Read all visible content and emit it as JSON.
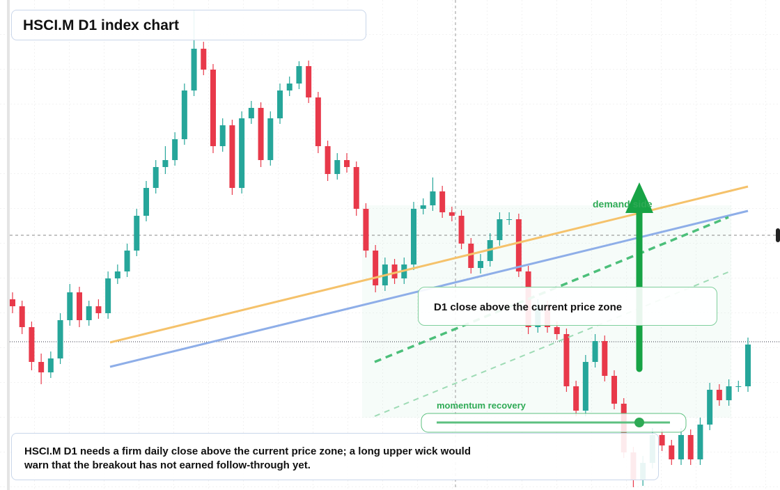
{
  "chart_data": {
    "type": "candlestick",
    "title": "HSCI.M D1 index chart",
    "annotations": {
      "demand": "demand side",
      "zone": "D1 close above the current price zone",
      "momentum": "momentum recovery",
      "note": "HSCI.M D1 needs a firm daily close above the current price zone; a long upper wick would warn that the breakout has not earned follow-through yet."
    },
    "up_color": "#26a69a",
    "down_color": "#e8394a",
    "ylim": [
      0,
      704
    ],
    "ohlc": [
      [
        274,
        284,
        254,
        264
      ],
      [
        264,
        272,
        224,
        234
      ],
      [
        234,
        242,
        172,
        184
      ],
      [
        184,
        196,
        152,
        169
      ],
      [
        169,
        199,
        161,
        189
      ],
      [
        189,
        254,
        181,
        244
      ],
      [
        244,
        296,
        236,
        284
      ],
      [
        284,
        292,
        234,
        244
      ],
      [
        244,
        272,
        236,
        264
      ],
      [
        264,
        274,
        246,
        254
      ],
      [
        254,
        314,
        246,
        304
      ],
      [
        304,
        324,
        296,
        314
      ],
      [
        314,
        354,
        306,
        344
      ],
      [
        344,
        404,
        336,
        394
      ],
      [
        394,
        444,
        386,
        434
      ],
      [
        434,
        474,
        426,
        464
      ],
      [
        464,
        494,
        454,
        474
      ],
      [
        474,
        514,
        466,
        504
      ],
      [
        504,
        584,
        496,
        574
      ],
      [
        574,
        690,
        566,
        634
      ],
      [
        634,
        644,
        596,
        604
      ],
      [
        604,
        612,
        484,
        494
      ],
      [
        494,
        534,
        486,
        524
      ],
      [
        524,
        532,
        424,
        434
      ],
      [
        434,
        544,
        426,
        534
      ],
      [
        534,
        559,
        526,
        549
      ],
      [
        549,
        557,
        464,
        474
      ],
      [
        474,
        544,
        466,
        534
      ],
      [
        534,
        584,
        526,
        574
      ],
      [
        574,
        594,
        566,
        584
      ],
      [
        584,
        616,
        576,
        609
      ],
      [
        609,
        617,
        556,
        564
      ],
      [
        564,
        572,
        484,
        494
      ],
      [
        494,
        502,
        444,
        454
      ],
      [
        454,
        484,
        446,
        474
      ],
      [
        474,
        484,
        456,
        464
      ],
      [
        464,
        472,
        394,
        404
      ],
      [
        404,
        412,
        334,
        344
      ],
      [
        344,
        352,
        284,
        294
      ],
      [
        294,
        334,
        286,
        324
      ],
      [
        324,
        332,
        296,
        304
      ],
      [
        304,
        334,
        296,
        324
      ],
      [
        324,
        414,
        316,
        404
      ],
      [
        404,
        419,
        396,
        409
      ],
      [
        409,
        449,
        401,
        429
      ],
      [
        429,
        437,
        391,
        399
      ],
      [
        399,
        407,
        386,
        394
      ],
      [
        394,
        402,
        346,
        354
      ],
      [
        354,
        362,
        311,
        319
      ],
      [
        319,
        339,
        311,
        329
      ],
      [
        329,
        369,
        321,
        359
      ],
      [
        359,
        399,
        351,
        389
      ],
      [
        389,
        399,
        381,
        389
      ],
      [
        389,
        397,
        306,
        314
      ],
      [
        314,
        322,
        224,
        234
      ],
      [
        234,
        274,
        226,
        264
      ],
      [
        264,
        272,
        226,
        234
      ],
      [
        234,
        242,
        216,
        224
      ],
      [
        224,
        232,
        141,
        149
      ],
      [
        149,
        157,
        106,
        114
      ],
      [
        114,
        194,
        106,
        184
      ],
      [
        184,
        224,
        176,
        214
      ],
      [
        214,
        222,
        156,
        164
      ],
      [
        164,
        172,
        116,
        124
      ],
      [
        124,
        132,
        46,
        54
      ],
      [
        54,
        62,
        4,
        14
      ],
      [
        14,
        49,
        6,
        39
      ],
      [
        39,
        89,
        31,
        79
      ],
      [
        79,
        87,
        56,
        64
      ],
      [
        64,
        72,
        36,
        44
      ],
      [
        44,
        89,
        36,
        79
      ],
      [
        79,
        87,
        36,
        44
      ],
      [
        44,
        104,
        36,
        94
      ],
      [
        94,
        154,
        86,
        144
      ],
      [
        144,
        152,
        121,
        129
      ],
      [
        129,
        159,
        121,
        149
      ],
      [
        149,
        157,
        141,
        149
      ],
      [
        149,
        219,
        141,
        209
      ]
    ]
  }
}
